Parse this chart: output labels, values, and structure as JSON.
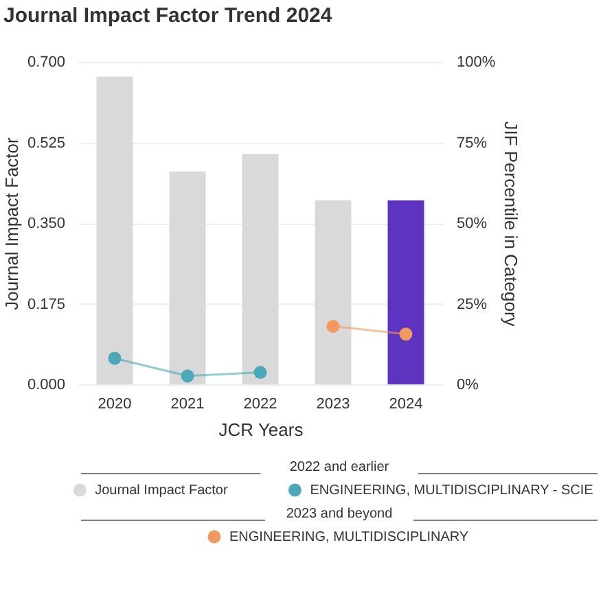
{
  "chart_data": {
    "type": "bar",
    "title": "Journal Impact Factor Trend 2024",
    "xlabel": "JCR Years",
    "ylabel": "Journal Impact Factor",
    "y2label": "JIF Percentile in Category",
    "categories": [
      "2020",
      "2021",
      "2022",
      "2023",
      "2024"
    ],
    "series": [
      {
        "name": "Journal Impact Factor",
        "type": "bar",
        "colors": [
          "#d9d9d9",
          "#d9d9d9",
          "#d9d9d9",
          "#d9d9d9",
          "#5e33bf"
        ],
        "values": [
          0.668,
          0.462,
          0.5,
          0.399,
          0.399
        ]
      },
      {
        "name": "ENGINEERING, MULTIDISCIPLINARY - SCIE",
        "type": "line",
        "axis": "y2",
        "color": "#4aa8b8",
        "values": [
          8.1,
          2.6,
          3.7,
          null,
          null
        ]
      },
      {
        "name": "ENGINEERING, MULTIDISCIPLINARY",
        "type": "line",
        "axis": "y2",
        "color": "#f4995e",
        "values": [
          null,
          null,
          null,
          18.0,
          15.6
        ]
      }
    ],
    "ylim": [
      0,
      0.7
    ],
    "yticks": [
      {
        "value": 0,
        "label": "0.000"
      },
      {
        "value": 0.175,
        "label": "0.175"
      },
      {
        "value": 0.35,
        "label": "0.350"
      },
      {
        "value": 0.525,
        "label": "0.525"
      },
      {
        "value": 0.7,
        "label": "0.700"
      }
    ],
    "y2lim": [
      0,
      100
    ],
    "y2ticks": [
      {
        "value": 0,
        "label": "0%"
      },
      {
        "value": 25,
        "label": "25%"
      },
      {
        "value": 50,
        "label": "50%"
      },
      {
        "value": 75,
        "label": "75%"
      },
      {
        "value": 100,
        "label": "100%"
      }
    ],
    "grid": "y",
    "marker": "circle",
    "legend": "bottom",
    "annotations": [
      "2022 and earlier",
      "2023 and beyond"
    ]
  }
}
